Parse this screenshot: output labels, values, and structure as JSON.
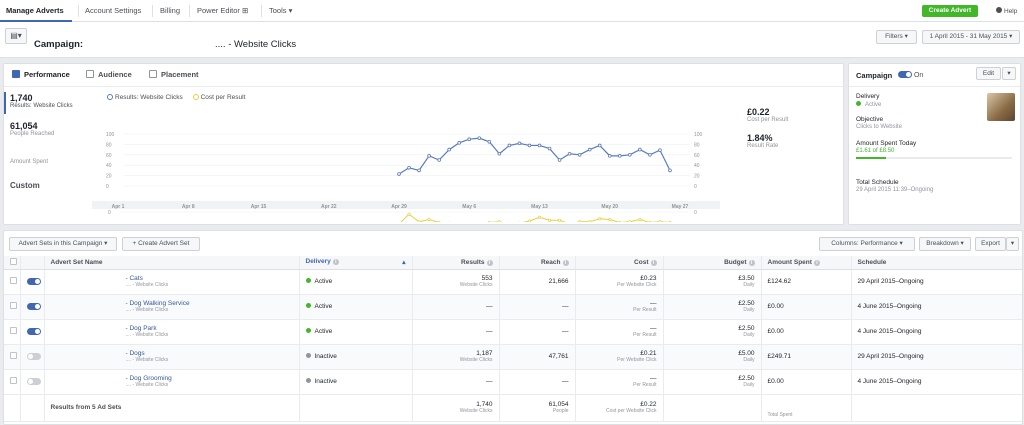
{
  "nav": {
    "tabs": [
      "Manage Adverts",
      "Account Settings",
      "Billing",
      "Power Editor",
      "Tools"
    ],
    "create_label": "Create Advert",
    "help_label": "Help"
  },
  "header": {
    "campaign_label": "Campaign:",
    "campaign_name": ".... - Website Clicks",
    "filters_label": "Filters",
    "date_range": "1 April 2015 - 31 May 2015"
  },
  "perf": {
    "tabs": [
      "Performance",
      "Audience",
      "Placement"
    ],
    "left_metrics": [
      {
        "value": "1,740",
        "label": "Results: Website Clicks"
      },
      {
        "value": "61,054",
        "label": "People Reached"
      },
      {
        "value": "",
        "label": "Amount Spent"
      }
    ],
    "custom_label": "Custom",
    "legend": [
      "Results: Website Clicks",
      "Cost per Result"
    ],
    "right_metrics": [
      {
        "value": "£0.22",
        "label": "Cost per Result"
      },
      {
        "value": "1.84%",
        "label": "Result Rate"
      }
    ]
  },
  "chart_data": {
    "type": "line",
    "x_tick_labels": [
      "Apr 1",
      "Apr 8",
      "Apr 15",
      "Apr 22",
      "Apr 29",
      "May 6",
      "May 13",
      "May 20",
      "May 27"
    ],
    "y_ticks": [
      0,
      20,
      40,
      60,
      80,
      100
    ],
    "ylim": [
      0,
      100
    ],
    "series": [
      {
        "name": "Results: Website Clicks",
        "color": "#5b7bb8",
        "x_start_day": 29,
        "values": [
          23,
          35,
          30,
          58,
          50,
          70,
          83,
          90,
          92,
          85,
          62,
          78,
          82,
          78,
          78,
          72,
          50,
          62,
          60,
          70,
          78,
          58,
          58,
          60,
          70,
          60,
          69,
          30
        ]
      },
      {
        "name": "Cost per Result",
        "color": "#e8cf3a",
        "values": [
          0.22,
          0.35,
          0.25,
          0.28,
          0.24,
          0.23,
          0.22,
          0.21,
          0.22,
          0.24,
          0.25,
          0.22,
          0.23,
          0.26,
          0.31,
          0.27,
          0.27,
          0.22,
          0.25,
          0.25,
          0.29,
          0.28,
          0.24,
          0.25,
          0.28,
          0.24,
          0.25,
          0.24
        ]
      }
    ],
    "grid": true
  },
  "side": {
    "campaign_label": "Campaign",
    "on_label": "On",
    "edit_label": "Edit",
    "delivery_label": "Delivery",
    "delivery_value": "Active",
    "objective_label": "Objective",
    "objective_value": "Clicks to Website",
    "spent_label": "Amount Spent Today",
    "spent_value": "£1.61 of £8.50",
    "schedule_label": "Total Schedule",
    "schedule_value": "29 April 2015 11:39–Ongoing"
  },
  "toolbar": {
    "adsets_label": "Advert Sets in this Campaign",
    "create_adset_label": "+ Create Advert Set",
    "columns_label": "Columns: Performance",
    "breakdown_label": "Breakdown",
    "export_label": "Export"
  },
  "table": {
    "headers": [
      "Advert Set Name",
      "Delivery",
      "Results",
      "Reach",
      "Cost",
      "Budget",
      "Amount Spent",
      "Schedule"
    ],
    "rows": [
      {
        "on": true,
        "name": "- Cats",
        "sub": ".... - Website Clicks",
        "delivery": "Active",
        "active": true,
        "results": "553",
        "results_sub": "Website Clicks",
        "reach": "21,666",
        "cost": "£0.23",
        "cost_sub": "Per Website Click",
        "budget": "£3.50",
        "budget_sub": "Daily",
        "spent": "£124.62",
        "schedule": "29 April 2015–Ongoing"
      },
      {
        "on": true,
        "name": "- Dog Walking Service",
        "sub": ".... - Website Clicks",
        "delivery": "Active",
        "active": true,
        "results": "—",
        "results_sub": "",
        "reach": "—",
        "cost": "—",
        "cost_sub": "Per Result",
        "budget": "£2.50",
        "budget_sub": "Daily",
        "spent": "£0.00",
        "schedule": "4 June 2015–Ongoing"
      },
      {
        "on": true,
        "name": "- Dog Park",
        "sub": ".... - Website Clicks",
        "delivery": "Active",
        "active": true,
        "results": "—",
        "results_sub": "",
        "reach": "—",
        "cost": "—",
        "cost_sub": "Per Result",
        "budget": "£2.50",
        "budget_sub": "Daily",
        "spent": "£0.00",
        "schedule": "4 June 2015–Ongoing"
      },
      {
        "on": false,
        "name": "- Dogs",
        "sub": ".... - Website Clicks",
        "delivery": "Inactive",
        "active": false,
        "results": "1,187",
        "results_sub": "Website Clicks",
        "reach": "47,761",
        "cost": "£0.21",
        "cost_sub": "Per Website Click",
        "budget": "£5.00",
        "budget_sub": "Daily",
        "spent": "£249.71",
        "schedule": "29 April 2015–Ongoing"
      },
      {
        "on": false,
        "name": "- Dog Grooming",
        "sub": ".... - Website Clicks",
        "delivery": "Inactive",
        "active": false,
        "results": "—",
        "results_sub": "",
        "reach": "—",
        "cost": "—",
        "cost_sub": "Per Result",
        "budget": "£2.50",
        "budget_sub": "Daily",
        "spent": "£0.00",
        "schedule": "4 June 2015–Ongoing"
      }
    ],
    "totals": {
      "label": "Results from 5 Ad Sets",
      "results": "1,740",
      "results_sub": "Website Clicks",
      "reach": "61,054",
      "reach_sub": "People",
      "cost": "£0.22",
      "cost_sub": "Cost per Website Click",
      "spent_sub": "Total Spent"
    }
  },
  "colors": {
    "accent": "#4267b2",
    "green": "#42b72a",
    "line": "#5b7bb8",
    "cost_line": "#e8cf3a"
  }
}
